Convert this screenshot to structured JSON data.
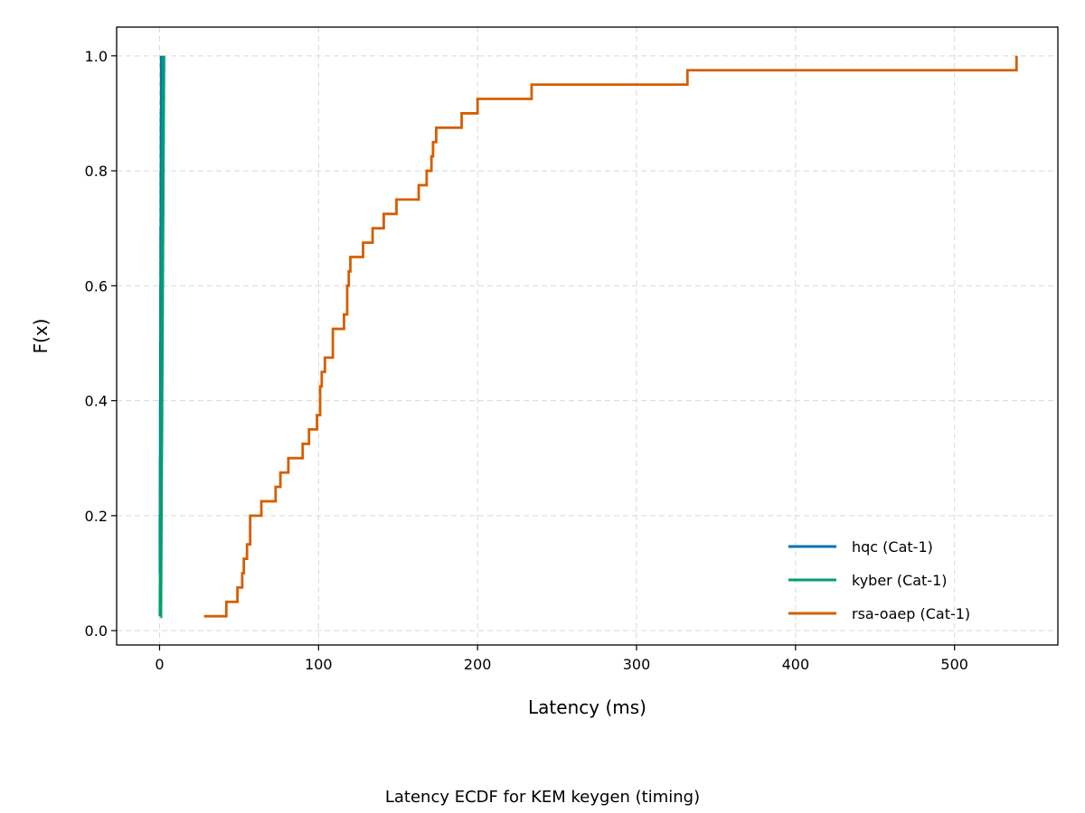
{
  "chart_data": {
    "type": "line",
    "step": true,
    "caption": "Latency ECDF for KEM keygen (timing)",
    "xlabel": "Latency (ms)",
    "ylabel": "F(x)",
    "xlim": [
      -27,
      565
    ],
    "ylim": [
      -0.025,
      1.05
    ],
    "xticks": [
      0,
      100,
      200,
      300,
      400,
      500
    ],
    "xtick_labels": [
      "0",
      "100",
      "200",
      "300",
      "400",
      "500"
    ],
    "yticks": [
      0.0,
      0.2,
      0.4,
      0.6,
      0.8,
      1.0
    ],
    "ytick_labels": [
      "0.0",
      "0.2",
      "0.4",
      "0.6",
      "0.8",
      "1.0"
    ],
    "grid": true,
    "legend_position": "lower-right",
    "series": [
      {
        "name": "hqc (Cat-1)",
        "color": "#0072B2",
        "x": [
          0.1,
          0.2,
          0.3,
          0.4,
          0.5,
          0.6,
          0.7,
          0.8,
          0.9,
          1.0
        ],
        "y": [
          0.1,
          0.2,
          0.3,
          0.4,
          0.5,
          0.6,
          0.7,
          0.8,
          0.9,
          1.0
        ]
      },
      {
        "name": "kyber (Cat-1)",
        "color": "#009E73",
        "x": [
          0.5,
          0.55,
          0.6,
          0.65,
          0.7,
          0.75,
          0.8,
          0.85,
          0.9,
          0.95,
          1.0,
          1.05,
          1.1,
          1.15,
          1.2,
          1.25,
          1.3,
          1.35,
          1.4,
          1.45,
          1.5,
          1.55,
          1.6,
          1.65,
          1.7,
          1.75,
          1.8,
          1.85,
          1.9,
          1.95,
          2.0,
          2.05,
          2.1,
          2.15,
          2.2,
          2.25,
          2.3,
          2.35,
          2.4,
          2.45
        ],
        "y": [
          0.025,
          0.05,
          0.075,
          0.1,
          0.125,
          0.15,
          0.175,
          0.2,
          0.225,
          0.25,
          0.275,
          0.3,
          0.325,
          0.35,
          0.375,
          0.4,
          0.425,
          0.45,
          0.475,
          0.5,
          0.525,
          0.55,
          0.575,
          0.6,
          0.625,
          0.65,
          0.675,
          0.7,
          0.725,
          0.75,
          0.775,
          0.8,
          0.825,
          0.85,
          0.875,
          0.9,
          0.925,
          0.95,
          0.975,
          1.0
        ]
      },
      {
        "name": "rsa-oaep (Cat-1)",
        "color": "#D55E00",
        "x": [
          28,
          42,
          49,
          52,
          53,
          55,
          57,
          64,
          73,
          76,
          81,
          90,
          94,
          99,
          101,
          102,
          104,
          109,
          116,
          118,
          119,
          120,
          128,
          134,
          141,
          149,
          163,
          168,
          171,
          172,
          174,
          190,
          200,
          234,
          332,
          539
        ],
        "y": [
          0.025,
          0.05,
          0.075,
          0.1,
          0.125,
          0.15,
          0.2,
          0.225,
          0.25,
          0.275,
          0.3,
          0.325,
          0.35,
          0.375,
          0.425,
          0.45,
          0.475,
          0.525,
          0.55,
          0.6,
          0.625,
          0.65,
          0.675,
          0.7,
          0.725,
          0.75,
          0.775,
          0.8,
          0.825,
          0.85,
          0.875,
          0.9,
          0.925,
          0.95,
          0.975,
          1.0
        ]
      }
    ]
  }
}
